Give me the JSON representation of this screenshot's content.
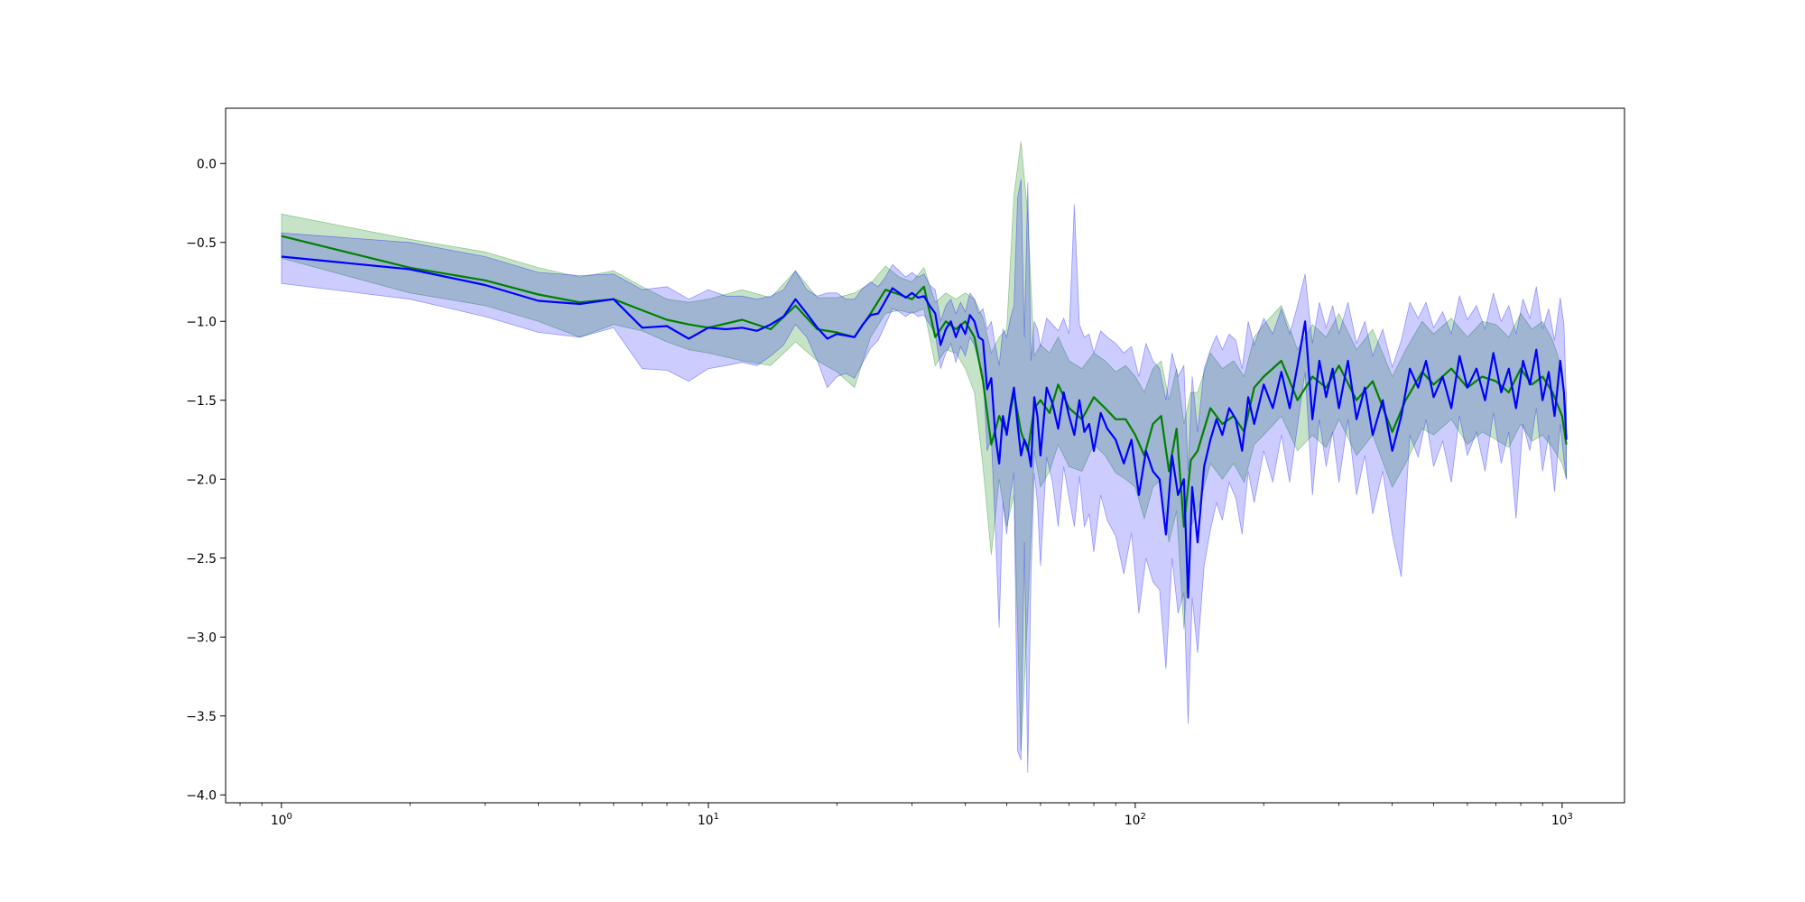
{
  "chart_data": {
    "type": "line",
    "title": "",
    "xlabel": "",
    "ylabel": "",
    "x_scale": "log",
    "xlim": [
      0.74,
      1400
    ],
    "ylim": [
      -4.05,
      0.35
    ],
    "grid": false,
    "legend": "none",
    "x_ticks": [
      {
        "value": 1,
        "base": "10",
        "exp": "0"
      },
      {
        "value": 10,
        "base": "10",
        "exp": "1"
      },
      {
        "value": 100,
        "base": "10",
        "exp": "2"
      },
      {
        "value": 1000,
        "base": "10",
        "exp": "3"
      }
    ],
    "y_ticks": [
      {
        "value": 0.0,
        "label": "0.0"
      },
      {
        "value": -0.5,
        "label": "−0.5"
      },
      {
        "value": -1.0,
        "label": "−1.0"
      },
      {
        "value": -1.5,
        "label": "−1.5"
      },
      {
        "value": -2.0,
        "label": "−2.0"
      },
      {
        "value": -2.5,
        "label": "−2.5"
      },
      {
        "value": -3.0,
        "label": "−3.0"
      },
      {
        "value": -3.5,
        "label": "−3.5"
      },
      {
        "value": -4.0,
        "label": "−4.0"
      }
    ],
    "series": [
      {
        "color": "#008000",
        "band_color": "#008000",
        "band_opacity": 0.22,
        "x": [
          1,
          2,
          3,
          4,
          5,
          6,
          7,
          8,
          9,
          10,
          12,
          14,
          16,
          18,
          20,
          22,
          24,
          26,
          28,
          30,
          32,
          34,
          36,
          38,
          40,
          42,
          44,
          46,
          48,
          50,
          52,
          54,
          56,
          58,
          60,
          63,
          66,
          70,
          75,
          80,
          85,
          90,
          95,
          100,
          105,
          110,
          115,
          120,
          125,
          130,
          135,
          140,
          150,
          160,
          170,
          180,
          190,
          200,
          220,
          240,
          260,
          280,
          300,
          330,
          360,
          400,
          430,
          470,
          500,
          550,
          600,
          650,
          700,
          750,
          800,
          850,
          900,
          950,
          1000,
          1023
        ],
        "y": [
          -0.46,
          -0.66,
          -0.74,
          -0.83,
          -0.88,
          -0.86,
          -0.93,
          -0.99,
          -1.02,
          -1.04,
          -0.99,
          -1.05,
          -0.9,
          -1.05,
          -1.07,
          -1.1,
          -0.95,
          -0.8,
          -0.83,
          -0.86,
          -0.78,
          -1.1,
          -1.0,
          -1.05,
          -1.0,
          -1.1,
          -1.38,
          -1.78,
          -1.6,
          -1.7,
          -1.45,
          -1.7,
          -1.82,
          -1.55,
          -1.5,
          -1.58,
          -1.4,
          -1.55,
          -1.62,
          -1.48,
          -1.55,
          -1.62,
          -1.62,
          -1.72,
          -1.85,
          -1.65,
          -1.6,
          -1.95,
          -1.68,
          -2.3,
          -1.88,
          -1.82,
          -1.55,
          -1.65,
          -1.6,
          -1.7,
          -1.42,
          -1.35,
          -1.25,
          -1.5,
          -1.35,
          -1.42,
          -1.28,
          -1.5,
          -1.38,
          -1.7,
          -1.5,
          -1.32,
          -1.4,
          -1.3,
          -1.42,
          -1.35,
          -1.38,
          -1.45,
          -1.3,
          -1.4,
          -1.35,
          -1.45,
          -1.6,
          -1.78
        ],
        "lower": [
          -0.6,
          -0.82,
          -0.9,
          -1.0,
          -1.1,
          -1.02,
          -1.06,
          -1.13,
          -1.18,
          -1.2,
          -1.25,
          -1.28,
          -1.13,
          -1.25,
          -1.32,
          -1.42,
          -1.1,
          -0.95,
          -0.93,
          -0.95,
          -0.92,
          -1.28,
          -1.18,
          -1.2,
          -1.3,
          -1.45,
          -1.92,
          -2.48,
          -2.0,
          -2.3,
          -2.1,
          -3.72,
          -2.85,
          -1.82,
          -2.05,
          -1.95,
          -1.78,
          -1.92,
          -1.95,
          -1.78,
          -1.85,
          -1.96,
          -2.0,
          -2.05,
          -2.25,
          -2.05,
          -2.0,
          -2.4,
          -2.2,
          -2.95,
          -2.3,
          -2.2,
          -1.9,
          -2.0,
          -1.9,
          -2.02,
          -1.78,
          -1.72,
          -1.6,
          -1.82,
          -1.72,
          -1.8,
          -1.62,
          -1.85,
          -1.72,
          -2.05,
          -1.9,
          -1.68,
          -1.72,
          -1.62,
          -1.78,
          -1.7,
          -1.75,
          -1.8,
          -1.65,
          -1.76,
          -1.72,
          -1.8,
          -1.9,
          -2.0
        ],
        "upper": [
          -0.32,
          -0.48,
          -0.56,
          -0.66,
          -0.72,
          -0.68,
          -0.78,
          -0.86,
          -0.88,
          -0.86,
          -0.8,
          -0.85,
          -0.68,
          -0.85,
          -0.85,
          -0.82,
          -0.76,
          -0.65,
          -0.72,
          -0.75,
          -0.66,
          -0.88,
          -0.82,
          -0.86,
          -0.82,
          -0.86,
          -0.98,
          -1.2,
          -1.1,
          -1.05,
          -0.2,
          0.14,
          -0.32,
          -1.22,
          -1.15,
          -1.2,
          -1.1,
          -1.25,
          -1.3,
          -1.2,
          -1.25,
          -1.32,
          -1.28,
          -1.35,
          -1.45,
          -1.3,
          -1.25,
          -1.5,
          -1.3,
          -1.65,
          -1.45,
          -1.45,
          -1.2,
          -1.3,
          -1.25,
          -1.35,
          -1.1,
          -1.02,
          -0.9,
          -1.18,
          -1.02,
          -1.1,
          -0.95,
          -1.18,
          -1.05,
          -1.35,
          -1.18,
          -1.0,
          -1.08,
          -0.98,
          -1.1,
          -1.0,
          -1.02,
          -1.1,
          -0.95,
          -1.05,
          -1.0,
          -1.12,
          -1.3,
          -1.58
        ]
      },
      {
        "color": "#0000ff",
        "band_color": "#0000ff",
        "band_opacity": 0.2,
        "x": [
          1,
          2,
          3,
          4,
          5,
          6,
          7,
          8,
          9,
          10,
          11,
          12,
          13,
          14,
          15,
          16,
          17,
          18,
          19,
          20,
          21,
          22,
          23,
          24,
          25,
          26,
          27,
          28,
          29,
          30,
          31,
          32,
          33,
          34,
          35,
          36,
          37,
          38,
          39,
          40,
          41,
          42,
          43,
          44,
          45,
          46,
          47,
          48,
          49,
          50,
          51,
          52,
          53,
          54,
          55,
          56,
          57,
          58,
          59,
          60,
          62,
          64,
          66,
          68,
          70,
          72,
          74,
          76,
          78,
          80,
          83,
          86,
          90,
          94,
          98,
          102,
          106,
          110,
          114,
          118,
          122,
          126,
          130,
          133,
          136,
          140,
          145,
          150,
          155,
          160,
          166,
          172,
          178,
          184,
          190,
          200,
          210,
          220,
          230,
          240,
          250,
          260,
          270,
          280,
          290,
          300,
          315,
          330,
          345,
          360,
          380,
          400,
          420,
          440,
          460,
          480,
          500,
          525,
          550,
          575,
          600,
          630,
          660,
          690,
          720,
          750,
          780,
          810,
          840,
          870,
          900,
          930,
          960,
          990,
          1010,
          1023
        ],
        "y": [
          -0.59,
          -0.67,
          -0.77,
          -0.87,
          -0.89,
          -0.86,
          -1.04,
          -1.03,
          -1.11,
          -1.04,
          -1.05,
          -1.04,
          -1.06,
          -1.02,
          -0.97,
          -0.86,
          -0.95,
          -1.04,
          -1.11,
          -1.08,
          -1.09,
          -1.1,
          -1.02,
          -0.96,
          -0.95,
          -0.87,
          -0.79,
          -0.82,
          -0.85,
          -0.82,
          -0.85,
          -0.84,
          -0.9,
          -0.95,
          -1.15,
          -1.05,
          -1.0,
          -1.1,
          -1.02,
          -1.08,
          -0.96,
          -1.0,
          -1.1,
          -1.12,
          -1.43,
          -1.36,
          -1.72,
          -1.9,
          -1.6,
          -1.72,
          -1.55,
          -1.42,
          -1.65,
          -1.85,
          -1.75,
          -1.8,
          -1.92,
          -1.48,
          -1.6,
          -1.85,
          -1.42,
          -1.52,
          -1.68,
          -1.45,
          -1.6,
          -1.72,
          -1.5,
          -1.7,
          -1.65,
          -1.82,
          -1.58,
          -1.68,
          -1.75,
          -1.9,
          -1.75,
          -2.1,
          -1.82,
          -1.95,
          -2.0,
          -2.35,
          -1.85,
          -2.1,
          -2.0,
          -2.75,
          -2.05,
          -2.4,
          -1.92,
          -1.75,
          -1.62,
          -1.72,
          -1.55,
          -1.62,
          -1.82,
          -1.48,
          -1.65,
          -1.4,
          -1.55,
          -1.32,
          -1.55,
          -1.28,
          -1.0,
          -1.62,
          -1.25,
          -1.48,
          -1.3,
          -1.55,
          -1.25,
          -1.62,
          -1.42,
          -1.72,
          -1.5,
          -1.82,
          -1.6,
          -1.3,
          -1.42,
          -1.25,
          -1.48,
          -1.35,
          -1.55,
          -1.22,
          -1.42,
          -1.3,
          -1.5,
          -1.2,
          -1.45,
          -1.3,
          -1.55,
          -1.25,
          -1.4,
          -1.18,
          -1.5,
          -1.32,
          -1.6,
          -1.25,
          -1.45,
          -1.75
        ],
        "lower": [
          -0.76,
          -0.86,
          -0.97,
          -1.07,
          -1.1,
          -1.04,
          -1.3,
          -1.31,
          -1.38,
          -1.3,
          -1.28,
          -1.26,
          -1.28,
          -1.22,
          -1.15,
          -1.02,
          -1.1,
          -1.25,
          -1.42,
          -1.35,
          -1.33,
          -1.36,
          -1.26,
          -1.17,
          -1.12,
          -1.02,
          -0.92,
          -0.94,
          -0.97,
          -0.94,
          -0.97,
          -0.96,
          -1.02,
          -1.08,
          -1.3,
          -1.2,
          -1.14,
          -1.26,
          -1.16,
          -1.22,
          -1.1,
          -1.15,
          -1.26,
          -1.32,
          -1.82,
          -1.74,
          -2.3,
          -2.94,
          -2.15,
          -2.35,
          -2.1,
          -1.96,
          -3.72,
          -3.78,
          -2.4,
          -3.86,
          -2.6,
          -1.96,
          -2.15,
          -2.55,
          -1.86,
          -2.02,
          -2.3,
          -1.92,
          -2.12,
          -2.3,
          -1.98,
          -2.3,
          -2.22,
          -2.46,
          -2.1,
          -2.26,
          -2.36,
          -2.6,
          -2.34,
          -2.85,
          -2.5,
          -2.65,
          -2.7,
          -3.2,
          -2.5,
          -2.85,
          -2.72,
          -3.55,
          -2.75,
          -3.1,
          -2.55,
          -2.32,
          -2.15,
          -2.26,
          -2.02,
          -2.12,
          -2.35,
          -1.95,
          -2.15,
          -1.82,
          -2.02,
          -1.72,
          -2.02,
          -1.66,
          -1.32,
          -2.1,
          -1.62,
          -1.92,
          -1.7,
          -2.02,
          -1.62,
          -2.1,
          -1.85,
          -2.22,
          -1.95,
          -2.35,
          -2.62,
          -1.72,
          -1.86,
          -1.62,
          -1.92,
          -1.76,
          -2.02,
          -1.6,
          -1.85,
          -1.7,
          -1.95,
          -1.58,
          -1.9,
          -1.7,
          -2.25,
          -1.65,
          -1.82,
          -1.55,
          -1.95,
          -1.72,
          -2.08,
          -1.65,
          -1.88,
          -2.0
        ],
        "upper": [
          -0.44,
          -0.5,
          -0.59,
          -0.69,
          -0.71,
          -0.7,
          -0.8,
          -0.78,
          -0.86,
          -0.8,
          -0.84,
          -0.84,
          -0.86,
          -0.84,
          -0.8,
          -0.68,
          -0.8,
          -0.84,
          -0.82,
          -0.82,
          -0.86,
          -0.86,
          -0.79,
          -0.75,
          -0.78,
          -0.72,
          -0.64,
          -0.68,
          -0.72,
          -0.69,
          -0.72,
          -0.7,
          -0.77,
          -0.8,
          -1.0,
          -0.9,
          -0.86,
          -0.95,
          -0.88,
          -0.94,
          -0.82,
          -0.86,
          -0.95,
          -0.92,
          -1.05,
          -1.0,
          -1.15,
          -1.28,
          -1.05,
          -1.1,
          -0.98,
          -0.9,
          -0.22,
          -0.1,
          -1.1,
          -0.12,
          -1.25,
          -1.0,
          -1.05,
          -1.16,
          -0.98,
          -1.02,
          -1.06,
          -0.98,
          -1.08,
          -0.26,
          -1.02,
          -1.1,
          -1.08,
          -1.2,
          -1.06,
          -1.1,
          -1.14,
          -1.2,
          -1.16,
          -1.35,
          -1.14,
          -1.25,
          -1.3,
          -1.5,
          -1.2,
          -1.35,
          -1.28,
          -1.95,
          -1.35,
          -1.7,
          -1.3,
          -1.18,
          -1.09,
          -1.18,
          -1.08,
          -1.12,
          -1.3,
          -1.0,
          -1.15,
          -0.98,
          -1.08,
          -0.92,
          -1.08,
          -0.9,
          -0.7,
          -1.14,
          -0.88,
          -1.04,
          -0.9,
          -1.08,
          -0.88,
          -1.14,
          -1.0,
          -1.22,
          -1.05,
          -1.29,
          -1.12,
          -0.88,
          -0.98,
          -0.88,
          -1.04,
          -0.94,
          -1.08,
          -0.84,
          -0.99,
          -0.9,
          -1.05,
          -0.82,
          -1.0,
          -0.9,
          -1.08,
          -0.86,
          -0.98,
          -0.78,
          -1.05,
          -0.92,
          -1.12,
          -0.85,
          -1.02,
          -1.5
        ]
      }
    ]
  }
}
